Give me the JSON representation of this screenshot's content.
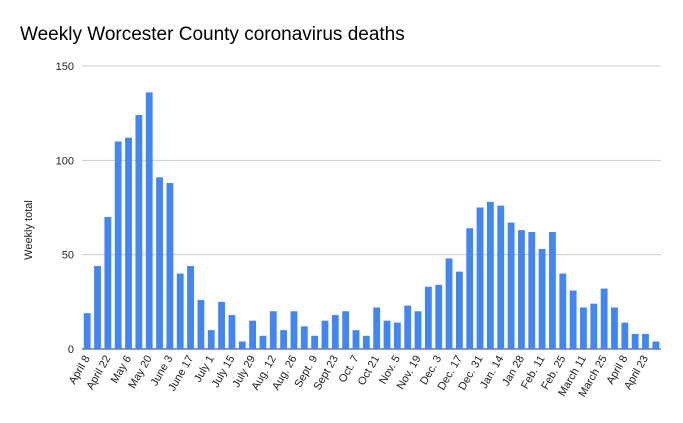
{
  "chart_data": {
    "type": "bar",
    "title": "Weekly Worcester County coronavirus deaths",
    "y_label": "Weekly total",
    "categories": [
      "April 8",
      null,
      "April 22",
      null,
      "May 6",
      null,
      "May 20",
      null,
      "June 3",
      null,
      "June 17",
      null,
      "July 1",
      null,
      "July 15",
      null,
      "July 29",
      null,
      "Aug. 12",
      null,
      "Aug. 26",
      null,
      "Sept. 9",
      null,
      "Sept 23",
      null,
      "Oct. 7",
      null,
      "Oct 21",
      null,
      "Nov. 5",
      null,
      "Nov. 19",
      null,
      "Dec. 3",
      null,
      "Dec. 17",
      null,
      "Dec. 31",
      null,
      "Jan. 14",
      null,
      "Jan 28",
      null,
      "Feb. 11",
      null,
      "Feb. 25",
      null,
      "March 11",
      null,
      "March 25",
      null,
      "April 8",
      null,
      "April 23",
      null
    ],
    "values": [
      19,
      44,
      70,
      110,
      112,
      124,
      136,
      91,
      88,
      40,
      44,
      26,
      10,
      25,
      18,
      4,
      15,
      7,
      20,
      10,
      20,
      12,
      7,
      15,
      18,
      20,
      10,
      7,
      22,
      15,
      14,
      23,
      20,
      33,
      34,
      48,
      41,
      64,
      75,
      78,
      76,
      67,
      63,
      62,
      53,
      62,
      40,
      31,
      22,
      24,
      32,
      22,
      14,
      8,
      8,
      4
    ],
    "color": "#4285f4",
    "ylim": [
      0,
      150
    ],
    "yticks": [
      0,
      50,
      100,
      150
    ],
    "grid": true
  }
}
